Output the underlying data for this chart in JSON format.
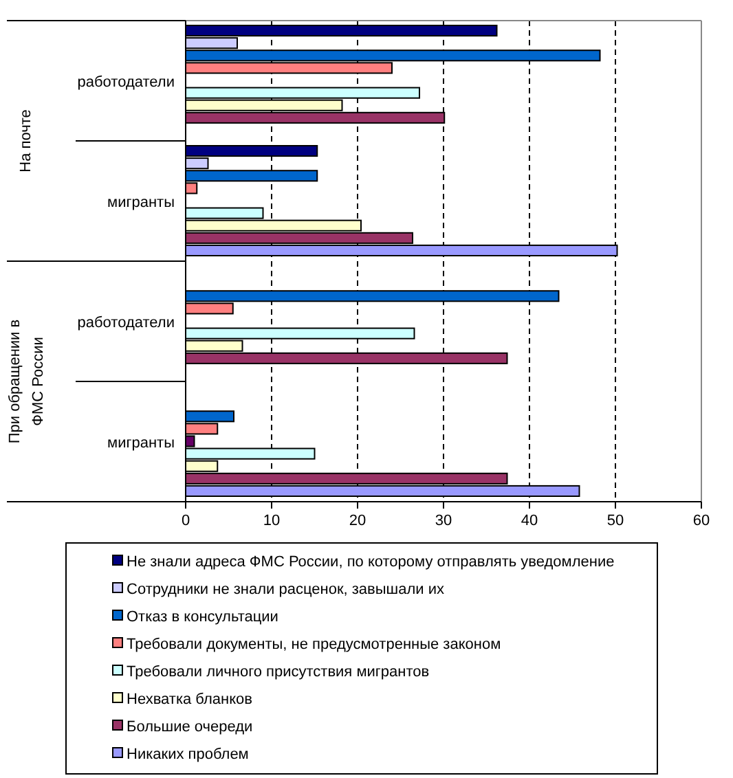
{
  "chart_data": {
    "type": "bar",
    "orientation": "horizontal",
    "categories": [
      "работодатели",
      "мигранты",
      "работодатели",
      "мигранты"
    ],
    "annotations": [
      "На почте",
      "При обращении в ФМС России"
    ],
    "xlim": [
      0,
      60
    ],
    "xticks": [
      0,
      10,
      20,
      30,
      40,
      50,
      60
    ],
    "grid": "x",
    "legend": "bottom",
    "series": [
      {
        "name": "Не знали адреса ФМС России, по которому отправлять уведомление",
        "color": "#000080",
        "values": [
          36.2,
          15.3,
          null,
          null
        ]
      },
      {
        "name": "Сотрудники не знали расценок, завышали их",
        "color": "#ccccff",
        "values": [
          6,
          2.6,
          null,
          null
        ]
      },
      {
        "name": "Отказ в консультации",
        "color": "#0066cc",
        "values": [
          48.2,
          15.3,
          43.4,
          5.6
        ]
      },
      {
        "name": "Требовали документы, не предусмотренные законом",
        "color": "#ff8080",
        "values": [
          24,
          1.3,
          5.5,
          3.7
        ]
      },
      {
        "color": "#660066",
        "values": [
          null,
          null,
          null,
          1
        ]
      },
      {
        "name": "Требовали личного присутствия мигрантов",
        "color": "#ccffff",
        "values": [
          27.2,
          9,
          26.6,
          15
        ]
      },
      {
        "name": "Нехватка бланков",
        "color": "#ffffcc",
        "values": [
          18.2,
          20.4,
          6.6,
          3.7
        ]
      },
      {
        "name": "Большие очереди",
        "color": "#993366",
        "values": [
          30.1,
          26.4,
          37.4,
          37.4
        ]
      },
      {
        "name": "Никаких проблем",
        "color": "#9999ff",
        "values": [
          null,
          50.2,
          null,
          45.8
        ]
      }
    ]
  }
}
